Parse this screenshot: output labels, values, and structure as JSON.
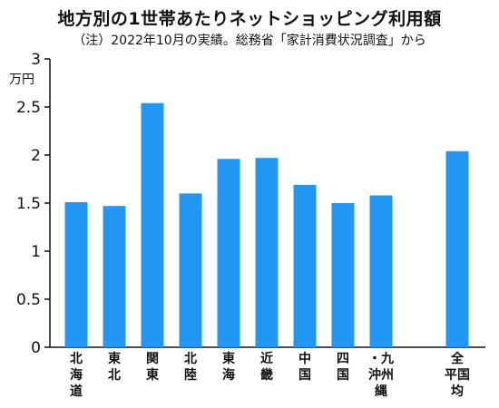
{
  "chart_data": {
    "type": "bar",
    "title": "地方別の1世帯あたりネットショッピング利用額",
    "subtitle": "（注）2022年10月の実績。総務省「家計消費状況調査」から",
    "unit_label": "万円",
    "ylim": [
      0,
      3
    ],
    "yticks": [
      "0",
      "0.5",
      "1",
      "1.5",
      "2",
      "2.5",
      "3"
    ],
    "grid": false,
    "bar_color": "#2196f3",
    "categories": [
      "北海道",
      "東北",
      "関東",
      "北陸",
      "東海",
      "近畿",
      "中国",
      "四国",
      "九州・沖縄",
      "全国平均"
    ],
    "category_lines": [
      [
        "北",
        "海",
        "道"
      ],
      [
        "東",
        "北"
      ],
      [
        "関",
        "東"
      ],
      [
        "北",
        "陸"
      ],
      [
        "東",
        "海"
      ],
      [
        "近",
        "畿"
      ],
      [
        "中",
        "国"
      ],
      [
        "四",
        "国"
      ],
      [
        "・九",
        "沖州",
        "縄"
      ],
      [
        "全",
        "平国",
        "均"
      ]
    ],
    "values": [
      1.51,
      1.47,
      2.54,
      1.6,
      1.96,
      1.97,
      1.69,
      1.5,
      1.58,
      2.04
    ]
  }
}
